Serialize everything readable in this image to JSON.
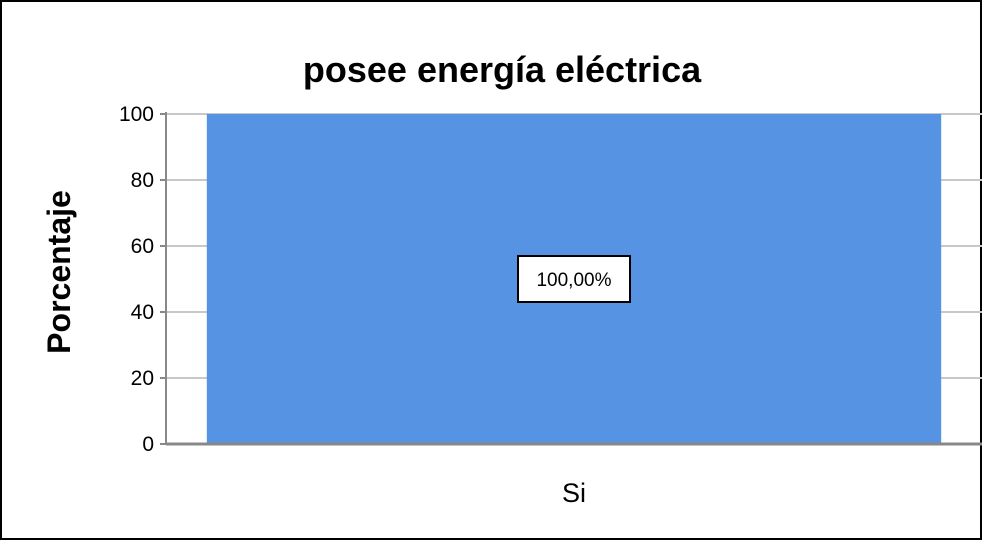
{
  "chart_data": {
    "type": "bar",
    "title": "posee energía eléctrica",
    "xlabel": "",
    "ylabel": "Porcentaje",
    "categories": [
      "Si"
    ],
    "values": [
      100
    ],
    "data_labels": [
      "100,00%"
    ],
    "ylim": [
      0,
      100
    ],
    "yticks": [
      0,
      20,
      40,
      60,
      80,
      100
    ],
    "grid": true,
    "legend": "none",
    "colors": {
      "bar": "#5693e3",
      "grid": "#c8c8c8",
      "axis": "#888888",
      "label_box_border": "#000000",
      "label_box_fill": "#ffffff"
    }
  }
}
